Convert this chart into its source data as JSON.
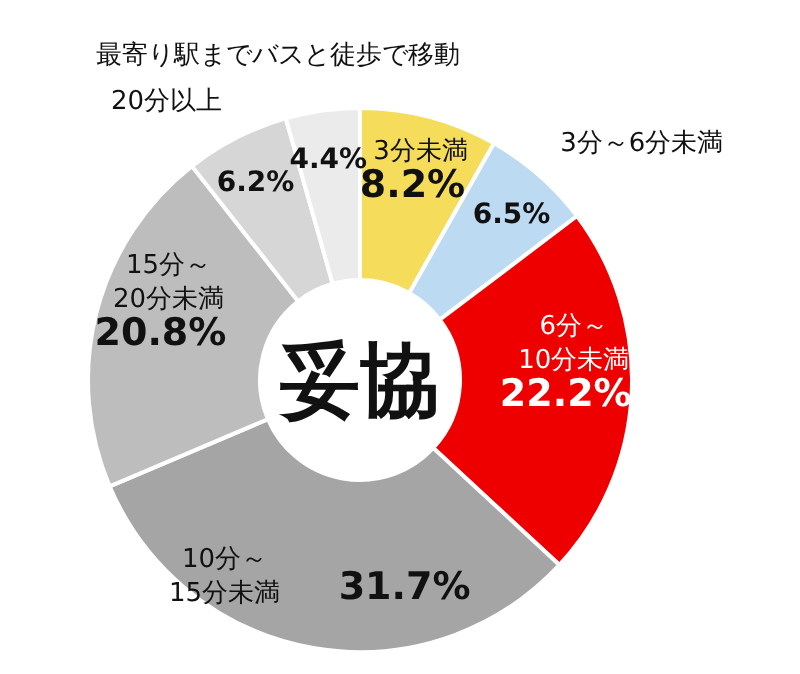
{
  "chart_data": {
    "type": "donut",
    "categories": [
      "3分未満",
      "3分～6分未満",
      "6分～10分未満",
      "10分～15分未満",
      "15分～20分未満",
      "20分以上",
      "最寄り駅までバスと徒歩で移動"
    ],
    "values": [
      8.2,
      6.5,
      22.2,
      31.7,
      20.8,
      6.2,
      4.4
    ],
    "value_labels": [
      "8.2%",
      "6.5%",
      "22.2%",
      "31.7%",
      "20.8%",
      "6.2%",
      "4.4%"
    ],
    "colors": [
      "#f5dc5a",
      "#bcdaf2",
      "#ee0000",
      "#a5a5a5",
      "#bdbdbd",
      "#d6d6d6",
      "#ebebeb"
    ],
    "annotations": [
      "妥協"
    ],
    "legend": false
  }
}
